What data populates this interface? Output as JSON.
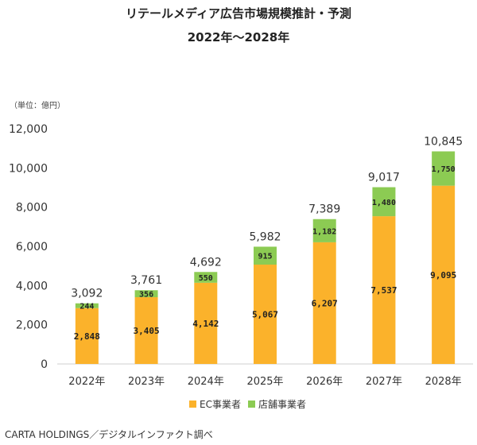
{
  "chart_data": {
    "type": "bar",
    "stacked": true,
    "title": "リテールメディア広告市場規模推計・予測",
    "subtitle": "2022年〜2028年",
    "unit_label": "（単位：億円）",
    "categories": [
      "2022年",
      "2023年",
      "2024年",
      "2025年",
      "2026年",
      "2027年",
      "2028年"
    ],
    "series": [
      {
        "name": "EC事業者",
        "color": "#FBB22B",
        "values": [
          2848,
          3405,
          4142,
          5067,
          6207,
          7537,
          9095
        ],
        "labels": [
          "2,848",
          "3,405",
          "4,142",
          "5,067",
          "6,207",
          "7,537",
          "9,095"
        ]
      },
      {
        "name": "店舗事業者",
        "color": "#8CCB53",
        "values": [
          244,
          356,
          550,
          915,
          1182,
          1480,
          1750
        ],
        "labels": [
          "244",
          "356",
          "550",
          "915",
          "1,182",
          "1,480",
          "1,750"
        ]
      }
    ],
    "totals": [
      "3,092",
      "3,761",
      "4,692",
      "5,982",
      "7,389",
      "9,017",
      "10,845"
    ],
    "ylim": [
      0,
      12000
    ],
    "yticks": [
      0,
      2000,
      4000,
      6000,
      8000,
      10000,
      12000
    ],
    "ytick_labels": [
      "0",
      "2,000",
      "4,000",
      "6,000",
      "8,000",
      "10,000",
      "12,000"
    ],
    "legend_position": "bottom",
    "grid": false
  },
  "source": "CARTA HOLDINGS／デジタルインファクト調べ"
}
